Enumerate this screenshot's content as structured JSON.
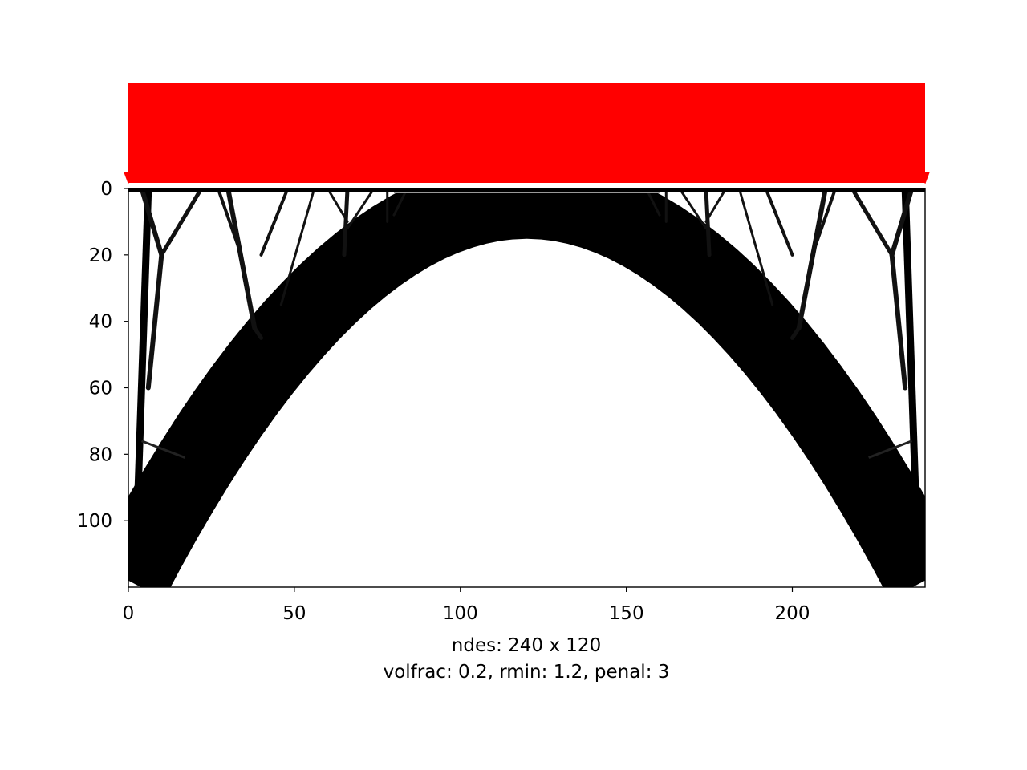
{
  "chart_data": {
    "type": "heatmap",
    "description_of_values": "topology-optimization density field (0 = void, 1 = solid)",
    "grid": {
      "nx": 240,
      "ny": 120
    },
    "xlabel": "ndes: 240 x 120",
    "caption_line2": "volfrac: 0.2, rmin: 1.2, penal: 3",
    "xlim": [
      0,
      240
    ],
    "ylim": [
      120,
      0
    ],
    "xticks": [
      0,
      50,
      100,
      150,
      200
    ],
    "yticks": [
      0,
      20,
      40,
      60,
      80,
      100
    ],
    "load": {
      "type": "distributed",
      "position": "top edge",
      "color": "#ff0000"
    },
    "structure": {
      "main_arch": {
        "apex": [
          120,
          3
        ],
        "ends": [
          [
            0,
            118
          ],
          [
            240,
            118
          ]
        ],
        "thickness": 9
      },
      "outer_legs": [
        {
          "from": [
            6,
            0
          ],
          "to": [
            2,
            118
          ]
        },
        {
          "from": [
            234,
            0
          ],
          "to": [
            238,
            118
          ]
        }
      ],
      "braces": [
        {
          "from": [
            4,
            76
          ],
          "to": [
            17,
            81
          ]
        },
        {
          "from": [
            236,
            76
          ],
          "to": [
            223,
            81
          ]
        }
      ]
    }
  }
}
